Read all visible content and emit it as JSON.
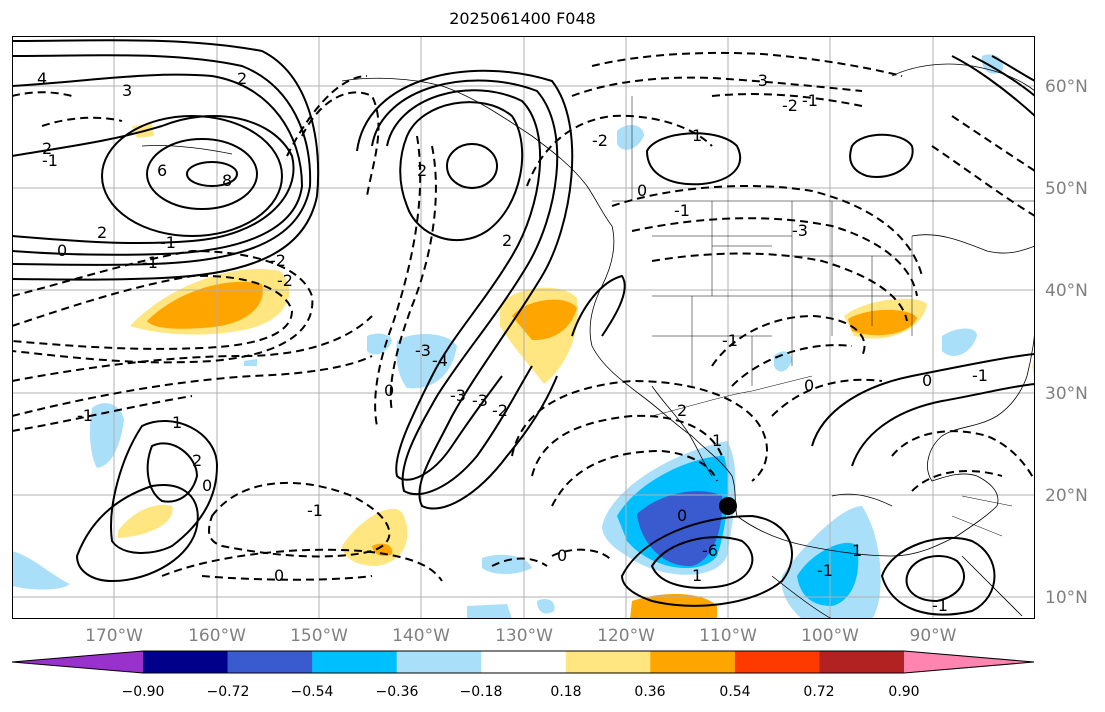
{
  "title": "2025061400 F048",
  "map": {
    "lon_labels": [
      "170°W",
      "160°W",
      "150°W",
      "140°W",
      "130°W",
      "120°W",
      "110°W",
      "100°W",
      "90°W"
    ],
    "lon_values": [
      -170,
      -160,
      -150,
      -140,
      -130,
      -120,
      -110,
      -100,
      -90
    ],
    "lat_labels": [
      "60°N",
      "50°N",
      "40°N",
      "30°N",
      "20°N",
      "10°N"
    ],
    "lat_values": [
      60,
      50,
      40,
      30,
      20,
      10
    ],
    "lon_range": [
      -180,
      -80
    ],
    "lat_range": [
      7,
      64
    ],
    "gridlines": true,
    "contour_labels": [
      "4",
      "3",
      "2",
      "8",
      "6",
      "2",
      "2",
      "-1",
      "-1",
      "2",
      "0",
      "-1",
      "-2",
      "-2",
      "-3",
      "-3",
      "-4",
      "2",
      "0",
      "-3",
      "-2",
      "0",
      "-2",
      "-1",
      "-3",
      "-1",
      "-2",
      "-3",
      "-1",
      "1",
      "1",
      "0",
      "0",
      "-1",
      "1",
      "-6",
      "0",
      "2",
      "-1",
      "2",
      "0",
      "-1",
      "1",
      "1",
      "0",
      "-1",
      "-1",
      "0"
    ],
    "marker": "storm-center-dot"
  },
  "colorbar": {
    "tick_labels": [
      "−0.90",
      "−0.72",
      "−0.54",
      "−0.36",
      "−0.18",
      "0.18",
      "0.36",
      "0.54",
      "0.72",
      "0.90"
    ],
    "bounds": [
      -0.9,
      -0.72,
      -0.54,
      -0.36,
      -0.18,
      0.18,
      0.36,
      0.54,
      0.72,
      0.9
    ],
    "colors": [
      "#9932cc",
      "#00008b",
      "#3a5bd0",
      "#00bfff",
      "#aadff9",
      "#ffffff",
      "#ffe680",
      "#ffa500",
      "#ff3a00",
      "#b22222",
      "#ff85b0"
    ],
    "extend": "both"
  }
}
